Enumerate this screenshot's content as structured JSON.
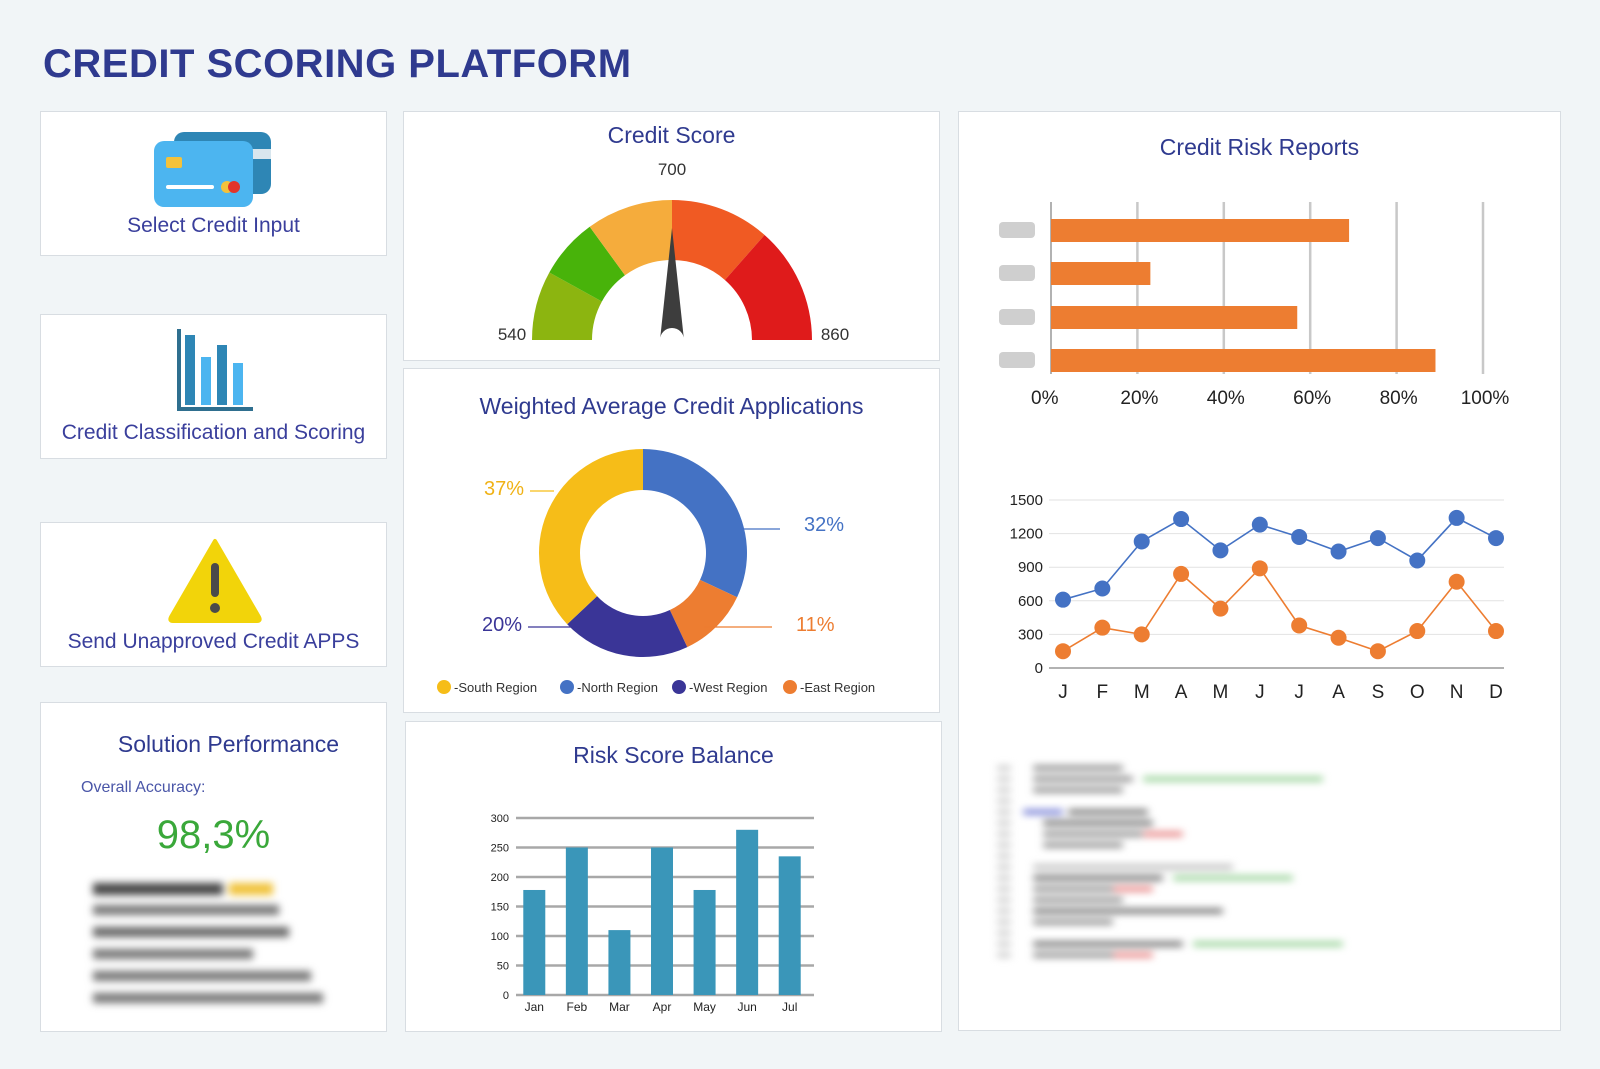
{
  "header": {
    "title": "CREDIT SCORING PLATFORM"
  },
  "nav": {
    "select_input": {
      "label": "Select Credit Input",
      "icon": "credit-card-icon"
    },
    "classification": {
      "label": "Credit Classification and Scoring",
      "icon": "bar-chart-icon"
    },
    "unapproved": {
      "label": "Send Unapproved Credit APPS",
      "icon": "warning-icon"
    }
  },
  "performance": {
    "title": "Solution Performance",
    "accuracy_label": "Overall Accuracy:",
    "accuracy_value": "98,3%"
  },
  "colors": {
    "title": "#2f3a8f",
    "accent_green": "#3aa83a",
    "orange_bar": "#ed7d31",
    "blue_line": "#4472c4",
    "teal_bar": "#3a96b9"
  },
  "chart_data": [
    {
      "type": "gauge",
      "title": "Credit Score",
      "min_label": "540",
      "mid_label": "700",
      "max_label": "860",
      "min": 540,
      "max": 860,
      "value": 700
    },
    {
      "type": "pie",
      "title": "Weighted Average Credit Applications",
      "slices": [
        {
          "name": "-North Region",
          "value": 32,
          "label": "32%",
          "color": "#4472c4"
        },
        {
          "name": "-East Region",
          "value": 11,
          "label": "11%",
          "color": "#ed7d31"
        },
        {
          "name": "-West Region",
          "value": 20,
          "label": "20%",
          "color": "#3a3597"
        },
        {
          "name": "-South Region",
          "value": 37,
          "label": "37%",
          "color": "#f6bd18"
        }
      ],
      "legend_order": [
        "-South Region",
        "-North Region",
        "-West Region",
        "-East Region"
      ],
      "legend": "bottom"
    },
    {
      "type": "bar",
      "title": "Risk Score Balance",
      "categories": [
        "Jan",
        "Feb",
        "Mar",
        "Apr",
        "May",
        "Jun",
        "Jul"
      ],
      "values": [
        178,
        250,
        110,
        250,
        178,
        280,
        235
      ],
      "yticks": [
        "0",
        "50",
        "100",
        "150",
        "200",
        "250",
        "300"
      ],
      "ylim": [
        0,
        300
      ],
      "grid": true
    },
    {
      "type": "bar",
      "orientation": "horizontal",
      "title": "Credit Risk Reports",
      "values": [
        69,
        23,
        57,
        89
      ],
      "xticks": [
        "0%",
        "20%",
        "40%",
        "60%",
        "80%",
        "100%"
      ],
      "xlim": [
        0,
        100
      ],
      "grid": true
    },
    {
      "type": "line",
      "categories": [
        "J",
        "F",
        "M",
        "A",
        "M",
        "J",
        "J",
        "A",
        "S",
        "O",
        "N",
        "D"
      ],
      "yticks": [
        "0",
        "300",
        "600",
        "900",
        "1200",
        "1500"
      ],
      "ylim": [
        0,
        1500
      ],
      "series": [
        {
          "values": [
            610,
            710,
            1130,
            1330,
            1050,
            1280,
            1170,
            1040,
            1160,
            960,
            1340,
            1160
          ],
          "color": "#4472c4"
        },
        {
          "values": [
            150,
            360,
            300,
            840,
            530,
            890,
            380,
            270,
            150,
            330,
            770,
            330
          ],
          "color": "#ed7d31"
        }
      ]
    }
  ]
}
